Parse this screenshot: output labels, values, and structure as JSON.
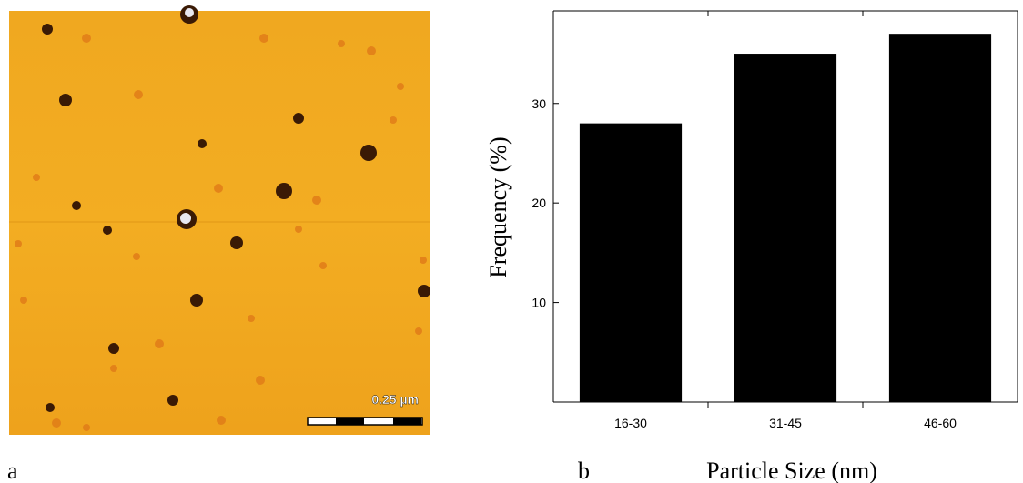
{
  "panel_a": {
    "label": "a",
    "scale_bar": "0.25 µm"
  },
  "panel_b": {
    "label": "b"
  },
  "chart_data": {
    "type": "bar",
    "x_label": "Particle Size (nm)",
    "y_label": "Frequency (%)",
    "categories": [
      "16-30",
      "31-45",
      "46-60"
    ],
    "values": [
      28,
      35,
      37
    ],
    "color": "#000000",
    "ylim": [
      0,
      39.3
    ],
    "yticks": [
      10,
      20,
      30
    ],
    "grid": false
  }
}
